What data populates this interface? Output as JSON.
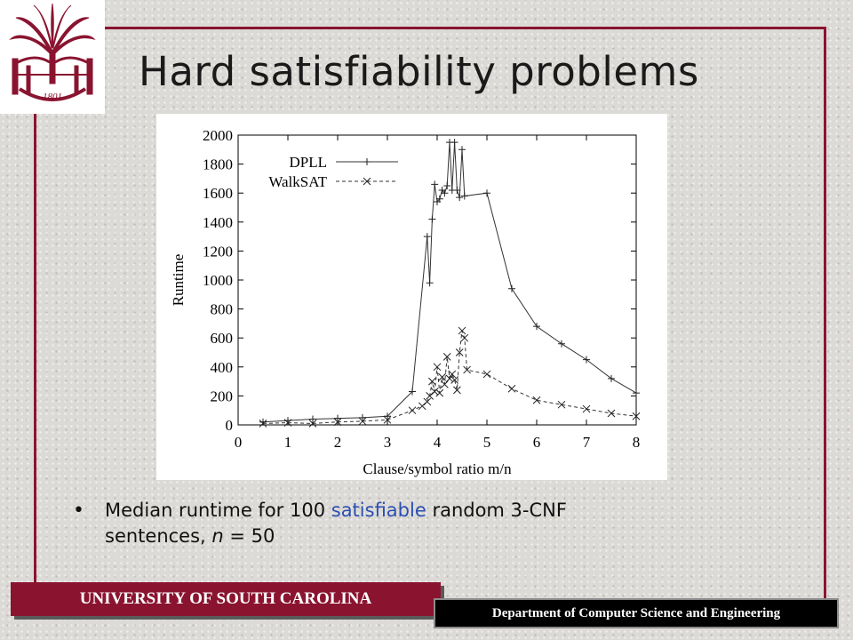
{
  "slide": {
    "title": "Hard satisfiability problems",
    "logo_text": "1801",
    "bullet": {
      "pre": "Median runtime for 100",
      "highlight": "satisfiable",
      "post": "random 3-CNF",
      "line2_pre": "sentences,",
      "line2_var": "n",
      "line2_post": "= 50"
    },
    "footer_left": "UNIVERSITY OF SOUTH CAROLINA",
    "footer_right": "Department of Computer Science and Engineering"
  },
  "colors": {
    "garnet": "#8a1430",
    "highlight": "#2a4fb0"
  },
  "chart_data": {
    "type": "line",
    "xlabel": "Clause/symbol ratio m/n",
    "ylabel": "Runtime",
    "xlim": [
      0,
      8
    ],
    "ylim": [
      0,
      2000
    ],
    "xticks": [
      0,
      1,
      2,
      3,
      4,
      5,
      6,
      7,
      8
    ],
    "yticks": [
      0,
      200,
      400,
      600,
      800,
      1000,
      1200,
      1400,
      1600,
      1800,
      2000
    ],
    "legend_position": "top-left",
    "series": [
      {
        "name": "DPLL",
        "style": "solid",
        "marker": "+",
        "x": [
          0.5,
          1.0,
          1.5,
          2.0,
          2.5,
          3.0,
          3.5,
          3.8,
          3.85,
          3.9,
          3.95,
          4.0,
          4.05,
          4.1,
          4.15,
          4.2,
          4.25,
          4.3,
          4.35,
          4.4,
          4.45,
          4.5,
          4.55,
          5.0,
          5.5,
          6.0,
          6.5,
          7.0,
          7.5,
          8.0
        ],
        "y": [
          20,
          30,
          40,
          45,
          50,
          60,
          230,
          1300,
          980,
          1420,
          1660,
          1540,
          1560,
          1620,
          1600,
          1650,
          1950,
          1620,
          1950,
          1620,
          1570,
          1900,
          1580,
          1600,
          940,
          680,
          560,
          450,
          320,
          220
        ]
      },
      {
        "name": "WalkSAT",
        "style": "dashed",
        "marker": "x",
        "x": [
          0.5,
          1.0,
          1.5,
          2.0,
          2.5,
          3.0,
          3.5,
          3.7,
          3.8,
          3.85,
          3.9,
          3.95,
          4.0,
          4.05,
          4.1,
          4.15,
          4.2,
          4.25,
          4.3,
          4.35,
          4.4,
          4.45,
          4.5,
          4.55,
          4.6,
          5.0,
          5.5,
          6.0,
          6.5,
          7.0,
          7.5,
          8.0
        ],
        "y": [
          10,
          15,
          10,
          20,
          25,
          35,
          100,
          130,
          160,
          200,
          300,
          230,
          400,
          220,
          330,
          280,
          470,
          320,
          350,
          310,
          240,
          500,
          650,
          600,
          380,
          350,
          250,
          170,
          140,
          110,
          80,
          60
        ]
      }
    ]
  }
}
